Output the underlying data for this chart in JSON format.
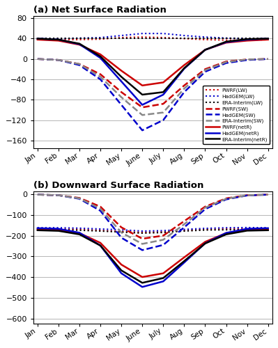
{
  "months": [
    1,
    2,
    3,
    4,
    5,
    6,
    7,
    8,
    9,
    10,
    11,
    12
  ],
  "month_labels": [
    "Jan",
    "Feb",
    "Mar",
    "Apr",
    "May",
    "June",
    "July",
    "Aug",
    "Sep",
    "Oct",
    "Nov",
    "Dec"
  ],
  "panel_a": {
    "title": "(a) Net Surface Radiation",
    "ylim": [
      -175,
      85
    ],
    "yticks": [
      -160,
      -120,
      -80,
      -40,
      0,
      40,
      80
    ],
    "series": {
      "PWRF_LW": [
        38,
        38,
        38,
        39,
        42,
        43,
        42,
        40,
        38,
        37,
        37,
        38
      ],
      "HadGEM_LW": [
        40,
        40,
        41,
        42,
        46,
        50,
        50,
        46,
        43,
        41,
        40,
        40
      ],
      "ERA_LW": [
        40,
        40,
        40,
        40,
        40,
        40,
        40,
        40,
        40,
        40,
        40,
        40
      ],
      "PWRF_SW": [
        0,
        -2,
        -10,
        -30,
        -65,
        -95,
        -88,
        -52,
        -20,
        -5,
        -1,
        0
      ],
      "HadGEM_SW": [
        0,
        -2,
        -12,
        -40,
        -90,
        -140,
        -120,
        -65,
        -25,
        -8,
        -2,
        0
      ],
      "ERA_SW": [
        0,
        -2,
        -10,
        -35,
        -75,
        -110,
        -105,
        -58,
        -22,
        -6,
        -1,
        0
      ],
      "PWRF_netR": [
        38,
        36,
        28,
        9,
        -23,
        -52,
        -46,
        -12,
        18,
        32,
        36,
        38
      ],
      "HadGEM_netR": [
        40,
        38,
        29,
        2,
        -44,
        -90,
        -70,
        -19,
        18,
        33,
        38,
        40
      ],
      "ERA_netR": [
        40,
        38,
        30,
        5,
        -35,
        -70,
        -65,
        -18,
        18,
        34,
        39,
        40
      ]
    }
  },
  "panel_b": {
    "title": "(b) Downward Surface Radiation",
    "ylim": [
      -625,
      15
    ],
    "yticks": [
      -600,
      -500,
      -400,
      -300,
      -200,
      -100,
      0
    ],
    "series": {
      "PWRF_LW": [
        -168,
        -168,
        -170,
        -175,
        -180,
        -185,
        -182,
        -175,
        -170,
        -168,
        -167,
        -168
      ],
      "HadGEM_LW": [
        -162,
        -162,
        -164,
        -168,
        -172,
        -178,
        -176,
        -170,
        -165,
        -162,
        -161,
        -162
      ],
      "ERA_LW": [
        -172,
        -172,
        -174,
        -178,
        -183,
        -188,
        -185,
        -178,
        -173,
        -172,
        -171,
        -172
      ],
      "PWRF_SW": [
        -2,
        -5,
        -18,
        -60,
        -160,
        -215,
        -200,
        -130,
        -60,
        -20,
        -5,
        -2
      ],
      "HadGEM_SW": [
        -2,
        -5,
        -22,
        -80,
        -210,
        -270,
        -245,
        -160,
        -72,
        -25,
        -6,
        -2
      ],
      "ERA_SW": [
        -2,
        -5,
        -20,
        -70,
        -185,
        -240,
        -220,
        -145,
        -65,
        -22,
        -5,
        -2
      ],
      "PWRF_netR": [
        -170,
        -173,
        -188,
        -235,
        -340,
        -400,
        -382,
        -305,
        -230,
        -188,
        -172,
        -170
      ],
      "HadGEM_netR": [
        -164,
        -167,
        -186,
        -248,
        -382,
        -448,
        -421,
        -330,
        -237,
        -187,
        -167,
        -164
      ],
      "ERA_netR": [
        -174,
        -177,
        -194,
        -248,
        -368,
        -428,
        -405,
        -323,
        -238,
        -194,
        -176,
        -174
      ]
    }
  },
  "colors": {
    "PWRF": "#cc0000",
    "HadGEM": "#0000cc",
    "ERA": "#000000",
    "ERA_SW": "#888888"
  },
  "linestyles": {
    "LW": "dotted",
    "SW": "dashed",
    "netR": "solid"
  },
  "linewidths": {
    "LW": 1.5,
    "SW": 1.8,
    "netR": 1.8
  }
}
